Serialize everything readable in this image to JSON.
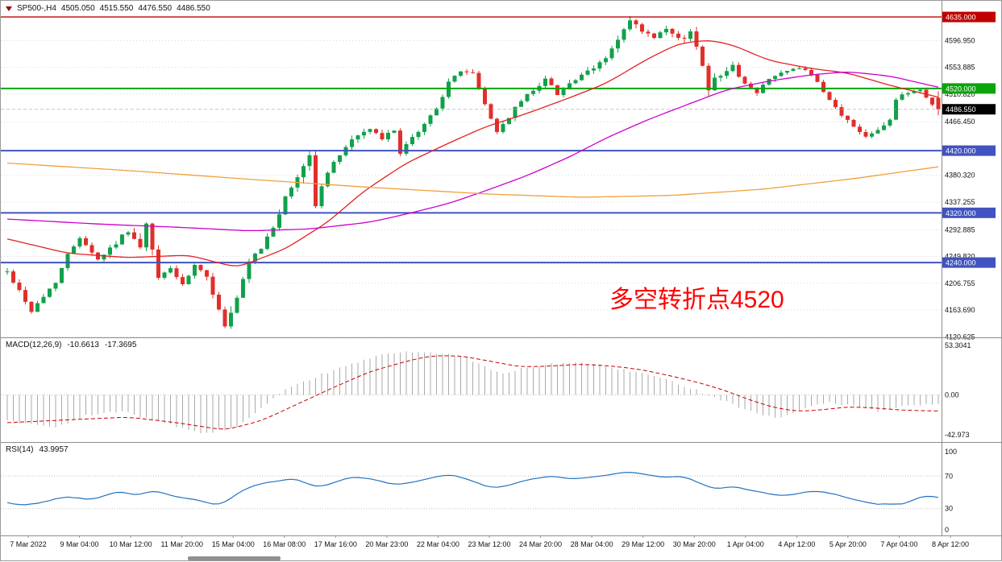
{
  "window": {
    "background": "#ffffff",
    "border_color": "#9a9a9a"
  },
  "header": {
    "marker_icon": "triangle-down",
    "symbol_period": "SP500-,H4",
    "open": "4505.050",
    "high": "4515.550",
    "low": "4476.550",
    "close": "4486.550"
  },
  "annotation": {
    "text": "多空转折点4520",
    "color": "#ff0000"
  },
  "indicators": {
    "macd": {
      "label": "MACD(12,26,9)",
      "value_main": "-10.6613",
      "value_signal": "-17.3695"
    },
    "rsi": {
      "label": "RSI(14)",
      "value": "43.9957"
    }
  },
  "colors": {
    "candle_up": "#11a14b",
    "candle_down": "#e12f2a",
    "grid": "#d7d7d7",
    "axis_text": "#111111",
    "panel_border": "#8c8c8c",
    "macd_histogram": "#a9a9a9",
    "macd_signal": "#c80000",
    "rsi_line": "#2272c0",
    "scrollbar": "#909090"
  },
  "chart_data": {
    "type": "candlestick",
    "symbol": "SP500-",
    "timeframe": "H4",
    "title": "SP500-,H4 4505.050 4515.550 4476.550 4486.550",
    "current_bar": {
      "open": 4505.05,
      "high": 4515.55,
      "low": 4476.55,
      "close": 4486.55
    },
    "bars": 155,
    "price_axis": {
      "range_top": 4661,
      "range_bottom": 4121,
      "grid_labels": [
        4596.95,
        4553.885,
        4510.82,
        4466.45,
        4380.32,
        4337.255,
        4292.885,
        4249.82,
        4206.755,
        4163.69,
        4120.625
      ]
    },
    "levels": [
      {
        "price": 4635.0,
        "label": "4635.000",
        "color": "#c00000",
        "width": 1.4
      },
      {
        "price": 4520.0,
        "label": "4520.000",
        "color": "#0aa50a",
        "width": 2
      },
      {
        "price": 4420.0,
        "label": "4420.000",
        "color": "#4053c0",
        "width": 2
      },
      {
        "price": 4320.0,
        "label": "4320.000",
        "color": "#4053c0",
        "width": 2
      },
      {
        "price": 4240.0,
        "label": "4240.000",
        "color": "#4053c0",
        "width": 2
      }
    ],
    "current_price": {
      "value": 4486.55,
      "label": "4486.550",
      "badge_color": "#000000"
    },
    "close_path": [
      [
        0,
        4225
      ],
      [
        2,
        4195
      ],
      [
        4,
        4162
      ],
      [
        6,
        4185
      ],
      [
        8,
        4210
      ],
      [
        10,
        4252
      ],
      [
        12,
        4282
      ],
      [
        15,
        4245
      ],
      [
        18,
        4272
      ],
      [
        20,
        4292
      ],
      [
        22,
        4262
      ],
      [
        23,
        4300
      ],
      [
        25,
        4215
      ],
      [
        27,
        4232
      ],
      [
        29,
        4202
      ],
      [
        31,
        4235
      ],
      [
        33,
        4215
      ],
      [
        35,
        4168
      ],
      [
        36,
        4135
      ],
      [
        38,
        4180
      ],
      [
        40,
        4240
      ],
      [
        42,
        4262
      ],
      [
        44,
        4298
      ],
      [
        46,
        4342
      ],
      [
        48,
        4378
      ],
      [
        50,
        4415
      ],
      [
        51,
        4330
      ],
      [
        52,
        4365
      ],
      [
        54,
        4400
      ],
      [
        56,
        4428
      ],
      [
        58,
        4445
      ],
      [
        60,
        4455
      ],
      [
        62,
        4438
      ],
      [
        64,
        4455
      ],
      [
        65,
        4415
      ],
      [
        67,
        4440
      ],
      [
        69,
        4462
      ],
      [
        71,
        4490
      ],
      [
        73,
        4528
      ],
      [
        75,
        4550
      ],
      [
        77,
        4543
      ],
      [
        79,
        4495
      ],
      [
        81,
        4450
      ],
      [
        83,
        4475
      ],
      [
        85,
        4500
      ],
      [
        87,
        4518
      ],
      [
        89,
        4535
      ],
      [
        91,
        4512
      ],
      [
        93,
        4528
      ],
      [
        95,
        4540
      ],
      [
        97,
        4552
      ],
      [
        99,
        4570
      ],
      [
        101,
        4598
      ],
      [
        103,
        4628
      ],
      [
        105,
        4612
      ],
      [
        107,
        4600
      ],
      [
        109,
        4615
      ],
      [
        111,
        4598
      ],
      [
        113,
        4610
      ],
      [
        115,
        4562
      ],
      [
        116,
        4522
      ],
      [
        118,
        4545
      ],
      [
        120,
        4555
      ],
      [
        122,
        4528
      ],
      [
        124,
        4512
      ],
      [
        126,
        4538
      ],
      [
        128,
        4545
      ],
      [
        130,
        4550
      ],
      [
        132,
        4552
      ],
      [
        134,
        4528
      ],
      [
        136,
        4500
      ],
      [
        138,
        4478
      ],
      [
        140,
        4458
      ],
      [
        142,
        4444
      ],
      [
        144,
        4455
      ],
      [
        146,
        4470
      ],
      [
        147,
        4502
      ],
      [
        149,
        4514
      ],
      [
        151,
        4518
      ],
      [
        153,
        4494
      ],
      [
        154,
        4487
      ]
    ],
    "volatility_path": [
      [
        0,
        14
      ],
      [
        10,
        12
      ],
      [
        20,
        14
      ],
      [
        23,
        26
      ],
      [
        26,
        12
      ],
      [
        33,
        14
      ],
      [
        36,
        30
      ],
      [
        40,
        16
      ],
      [
        46,
        18
      ],
      [
        51,
        30
      ],
      [
        55,
        16
      ],
      [
        62,
        12
      ],
      [
        70,
        12
      ],
      [
        75,
        14
      ],
      [
        80,
        14
      ],
      [
        90,
        12
      ],
      [
        100,
        14
      ],
      [
        103,
        18
      ],
      [
        108,
        12
      ],
      [
        116,
        26
      ],
      [
        120,
        14
      ],
      [
        130,
        10
      ],
      [
        136,
        12
      ],
      [
        143,
        12
      ],
      [
        148,
        10
      ],
      [
        154,
        10
      ]
    ],
    "moving_averages": [
      {
        "name": "ma-fast-red",
        "color": "#e32020",
        "path": [
          [
            0,
            4278
          ],
          [
            10,
            4255
          ],
          [
            20,
            4248
          ],
          [
            30,
            4252
          ],
          [
            38,
            4232
          ],
          [
            46,
            4262
          ],
          [
            53,
            4305
          ],
          [
            59,
            4355
          ],
          [
            66,
            4400
          ],
          [
            73,
            4432
          ],
          [
            79,
            4458
          ],
          [
            86,
            4480
          ],
          [
            93,
            4505
          ],
          [
            99,
            4528
          ],
          [
            106,
            4568
          ],
          [
            111,
            4592
          ],
          [
            116,
            4598
          ],
          [
            120,
            4590
          ],
          [
            126,
            4565
          ],
          [
            133,
            4552
          ],
          [
            139,
            4545
          ],
          [
            146,
            4525
          ],
          [
            154,
            4506
          ]
        ]
      },
      {
        "name": "ma-medium-magenta",
        "color": "#cc00cc",
        "path": [
          [
            0,
            4310
          ],
          [
            15,
            4302
          ],
          [
            30,
            4296
          ],
          [
            40,
            4291
          ],
          [
            50,
            4294
          ],
          [
            60,
            4305
          ],
          [
            66,
            4318
          ],
          [
            73,
            4335
          ],
          [
            79,
            4355
          ],
          [
            86,
            4380
          ],
          [
            93,
            4410
          ],
          [
            99,
            4440
          ],
          [
            106,
            4470
          ],
          [
            113,
            4496
          ],
          [
            119,
            4518
          ],
          [
            126,
            4532
          ],
          [
            133,
            4542
          ],
          [
            139,
            4547
          ],
          [
            146,
            4540
          ],
          [
            154,
            4522
          ]
        ]
      },
      {
        "name": "ma-slow-orange",
        "color": "#f0a03c",
        "path": [
          [
            0,
            4400
          ],
          [
            20,
            4388
          ],
          [
            40,
            4374
          ],
          [
            60,
            4361
          ],
          [
            80,
            4350
          ],
          [
            95,
            4345
          ],
          [
            110,
            4348
          ],
          [
            125,
            4358
          ],
          [
            140,
            4375
          ],
          [
            154,
            4394
          ]
        ]
      }
    ],
    "macd": {
      "params": "12,26,9",
      "current_main": -10.6613,
      "current_signal": -17.3695,
      "range_top": 61,
      "range_bottom": -50,
      "axis_labels": [
        {
          "value": 53.3041,
          "label": "53.3041"
        },
        {
          "value": 0,
          "label": "0.00"
        },
        {
          "value": -42.973,
          "label": "-42.973"
        }
      ],
      "histogram_path": [
        [
          0,
          -28
        ],
        [
          8,
          -35
        ],
        [
          13,
          -22
        ],
        [
          19,
          -18
        ],
        [
          26,
          -30
        ],
        [
          32,
          -42
        ],
        [
          38,
          -35
        ],
        [
          43,
          -10
        ],
        [
          46,
          5
        ],
        [
          52,
          22
        ],
        [
          58,
          35
        ],
        [
          63,
          45
        ],
        [
          68,
          47
        ],
        [
          73,
          43
        ],
        [
          76,
          40
        ],
        [
          79,
          30
        ],
        [
          82,
          22
        ],
        [
          85,
          28
        ],
        [
          89,
          32
        ],
        [
          93,
          35
        ],
        [
          97,
          33
        ],
        [
          101,
          28
        ],
        [
          106,
          22
        ],
        [
          111,
          12
        ],
        [
          116,
          0
        ],
        [
          120,
          -10
        ],
        [
          123,
          -18
        ],
        [
          127,
          -25
        ],
        [
          130,
          -20
        ],
        [
          133,
          -12
        ],
        [
          136,
          -8
        ],
        [
          140,
          -12
        ],
        [
          144,
          -18
        ],
        [
          148,
          -13
        ],
        [
          151,
          -11
        ],
        [
          154,
          -10.7
        ]
      ],
      "signal_path": [
        [
          0,
          -30
        ],
        [
          10,
          -27
        ],
        [
          20,
          -24
        ],
        [
          28,
          -30
        ],
        [
          36,
          -38
        ],
        [
          42,
          -28
        ],
        [
          48,
          -10
        ],
        [
          54,
          8
        ],
        [
          60,
          25
        ],
        [
          66,
          36
        ],
        [
          70,
          42
        ],
        [
          75,
          42
        ],
        [
          80,
          36
        ],
        [
          85,
          30
        ],
        [
          90,
          31
        ],
        [
          95,
          33
        ],
        [
          100,
          31
        ],
        [
          105,
          27
        ],
        [
          110,
          20
        ],
        [
          115,
          12
        ],
        [
          119,
          4
        ],
        [
          123,
          -6
        ],
        [
          127,
          -14
        ],
        [
          131,
          -18
        ],
        [
          135,
          -16
        ],
        [
          139,
          -13
        ],
        [
          143,
          -14
        ],
        [
          147,
          -16
        ],
        [
          150,
          -17
        ],
        [
          154,
          -17.4
        ]
      ]
    },
    "rsi": {
      "period": 14,
      "current": 43.9957,
      "axis_labels": [
        {
          "value": 100,
          "label": "100"
        },
        {
          "value": 70,
          "label": "70"
        },
        {
          "value": 30,
          "label": "30"
        },
        {
          "value": 0,
          "label": "0"
        }
      ],
      "levels": [
        70,
        30
      ],
      "path": [
        [
          0,
          38
        ],
        [
          3,
          33
        ],
        [
          7,
          40
        ],
        [
          10,
          45
        ],
        [
          14,
          40
        ],
        [
          18,
          52
        ],
        [
          22,
          45
        ],
        [
          24,
          55
        ],
        [
          27,
          45
        ],
        [
          30,
          42
        ],
        [
          33,
          38
        ],
        [
          35,
          32
        ],
        [
          38,
          48
        ],
        [
          40,
          58
        ],
        [
          45,
          65
        ],
        [
          48,
          68
        ],
        [
          51,
          55
        ],
        [
          54,
          62
        ],
        [
          57,
          70
        ],
        [
          62,
          64
        ],
        [
          65,
          58
        ],
        [
          70,
          68
        ],
        [
          74,
          72
        ],
        [
          79,
          58
        ],
        [
          81,
          55
        ],
        [
          86,
          65
        ],
        [
          90,
          70
        ],
        [
          94,
          66
        ],
        [
          98,
          70
        ],
        [
          102,
          75
        ],
        [
          106,
          72
        ],
        [
          109,
          67
        ],
        [
          111,
          71
        ],
        [
          114,
          64
        ],
        [
          117,
          54
        ],
        [
          120,
          58
        ],
        [
          123,
          52
        ],
        [
          126,
          48
        ],
        [
          129,
          45
        ],
        [
          131,
          50
        ],
        [
          134,
          52
        ],
        [
          137,
          48
        ],
        [
          139,
          43
        ],
        [
          142,
          38
        ],
        [
          144,
          34
        ],
        [
          146,
          37
        ],
        [
          148,
          33
        ],
        [
          150,
          43
        ],
        [
          152,
          47
        ],
        [
          154,
          44
        ]
      ]
    },
    "time_axis": {
      "labels": [
        "7 Mar 2022",
        "9 Mar 04:00",
        "10 Mar 12:00",
        "11 Mar 20:00",
        "15 Mar 04:00",
        "16 Mar 08:00",
        "17 Mar 16:00",
        "20 Mar 23:00",
        "22 Mar 04:00",
        "23 Mar 12:00",
        "24 Mar 20:00",
        "28 Mar 04:00",
        "29 Mar 12:00",
        "30 Mar 20:00",
        "1 Apr 04:00",
        "4 Apr 12:00",
        "5 Apr 20:00",
        "7 Apr 04:00",
        "8 Apr 12:00"
      ]
    },
    "layout_hints": {
      "grid": "dotted-horizontal",
      "legend_position": "none",
      "panels": [
        "price",
        "macd",
        "rsi"
      ]
    }
  }
}
